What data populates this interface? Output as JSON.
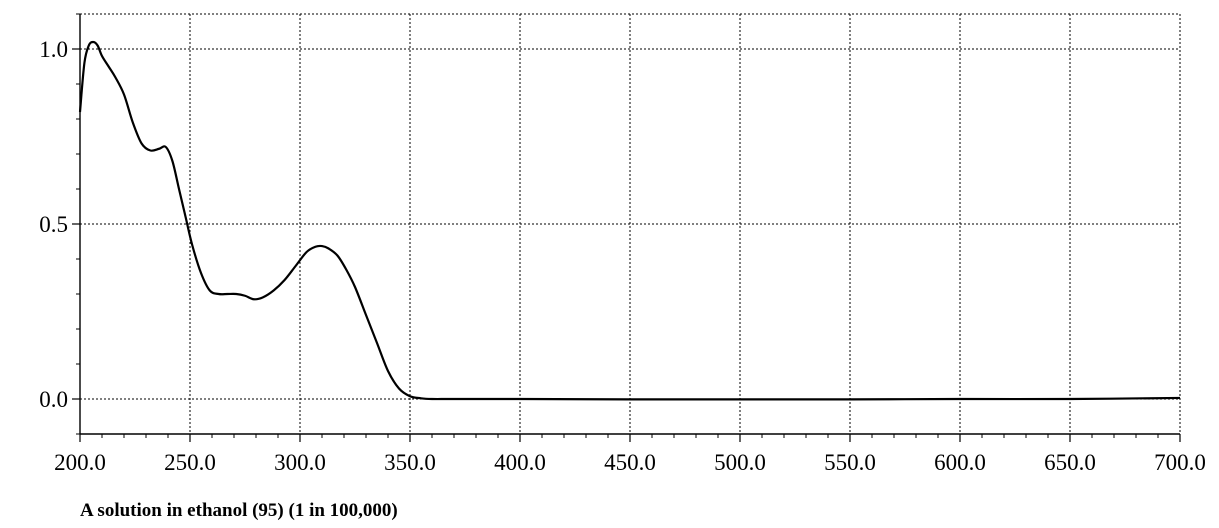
{
  "chart_data": {
    "type": "line",
    "title": "",
    "xlabel": "",
    "ylabel": "",
    "caption": "A solution in ethanol (95) (1 in 100,000)",
    "xlim": [
      200,
      700
    ],
    "ylim": [
      -0.1,
      1.1
    ],
    "grid": true,
    "x_ticks": [
      200,
      250,
      300,
      350,
      400,
      450,
      500,
      550,
      600,
      650,
      700
    ],
    "x_tick_labels": [
      "200.0",
      "250.0",
      "300.0",
      "350.0",
      "400.0",
      "450.0",
      "500.0",
      "550.0",
      "600.0",
      "650.0",
      "700.0"
    ],
    "y_ticks": [
      0.0,
      0.5,
      1.0
    ],
    "y_tick_labels": [
      "0.0",
      "0.5",
      "1.0"
    ],
    "line_color": "#000000",
    "series": [
      {
        "x": [
          200,
          202,
          204,
          206,
          208,
          210,
          213,
          216,
          220,
          224,
          228,
          232,
          236,
          239,
          242,
          245,
          248,
          251,
          255,
          259,
          263,
          267,
          271,
          275,
          279,
          283,
          288,
          293,
          298,
          303,
          307,
          310,
          313,
          317,
          321,
          325,
          330,
          335,
          340,
          345,
          350,
          355,
          360,
          370,
          400,
          450,
          500,
          550,
          600,
          650,
          700
        ],
        "y": [
          0.82,
          0.96,
          1.01,
          1.02,
          1.01,
          0.98,
          0.95,
          0.92,
          0.87,
          0.79,
          0.73,
          0.71,
          0.715,
          0.72,
          0.68,
          0.6,
          0.52,
          0.44,
          0.36,
          0.31,
          0.3,
          0.3,
          0.3,
          0.295,
          0.285,
          0.29,
          0.31,
          0.34,
          0.38,
          0.42,
          0.435,
          0.437,
          0.43,
          0.41,
          0.37,
          0.32,
          0.24,
          0.16,
          0.08,
          0.03,
          0.008,
          0.002,
          0.0,
          0.0,
          0.0,
          -0.001,
          -0.001,
          -0.001,
          0.0,
          0.0,
          0.003
        ]
      }
    ]
  }
}
